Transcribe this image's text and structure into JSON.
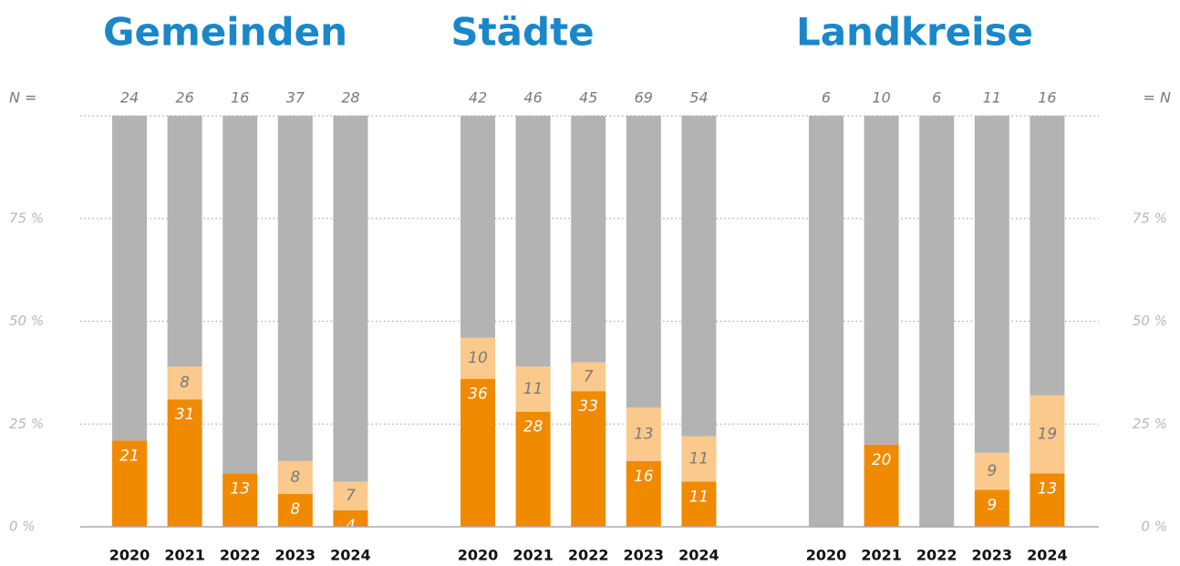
{
  "chart_data": {
    "type": "bar",
    "stacked": true,
    "n_label_left": "N =",
    "n_label_right": "= N",
    "ylim": [
      0,
      100
    ],
    "yticks": [
      {
        "value": 0,
        "label": "0 %"
      },
      {
        "value": 25,
        "label": "25 %"
      },
      {
        "value": 50,
        "label": "50 %"
      },
      {
        "value": 75,
        "label": "75 %"
      }
    ],
    "grid": true,
    "panels": [
      {
        "title": "Gemeinden",
        "categories": [
          "2020",
          "2021",
          "2022",
          "2023",
          "2024"
        ],
        "n": [
          24,
          26,
          16,
          37,
          28
        ],
        "series": [
          {
            "color": "#f08a00",
            "values": [
              21,
              31,
              13,
              8,
              4
            ]
          },
          {
            "color": "#fbc98c",
            "values": [
              null,
              8,
              null,
              8,
              7
            ]
          },
          {
            "color": "#b3b3b3",
            "values": [
              79,
              61,
              87,
              84,
              89
            ]
          }
        ]
      },
      {
        "title": "Städte",
        "categories": [
          "2020",
          "2021",
          "2022",
          "2023",
          "2024"
        ],
        "n": [
          42,
          46,
          45,
          69,
          54
        ],
        "series": [
          {
            "color": "#f08a00",
            "values": [
              36,
              28,
              33,
              16,
              11
            ]
          },
          {
            "color": "#fbc98c",
            "values": [
              10,
              11,
              7,
              13,
              11
            ]
          },
          {
            "color": "#b3b3b3",
            "values": [
              54,
              61,
              60,
              71,
              78
            ]
          }
        ]
      },
      {
        "title": "Landkreise",
        "categories": [
          "2020",
          "2021",
          "2022",
          "2023",
          "2024"
        ],
        "n": [
          6,
          10,
          6,
          11,
          16
        ],
        "series": [
          {
            "color": "#f08a00",
            "values": [
              0,
              20,
              0,
              9,
              13
            ]
          },
          {
            "color": "#fbc98c",
            "values": [
              null,
              null,
              null,
              9,
              19
            ]
          },
          {
            "color": "#b3b3b3",
            "values": [
              100,
              80,
              100,
              82,
              68
            ]
          }
        ]
      }
    ]
  }
}
